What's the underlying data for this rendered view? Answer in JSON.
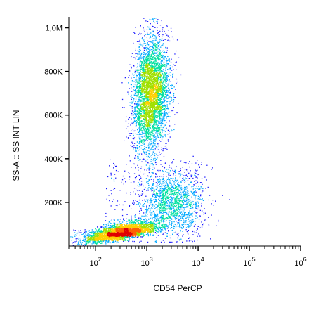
{
  "chart_data": {
    "type": "scatter",
    "style": "density-colored flow cytometry dot plot",
    "xlabel": "CD54 PerCP",
    "ylabel": "SS-A :: SS INT LIN",
    "x_scale": "log",
    "x_range": [
      30,
      1000000
    ],
    "y_scale": "linear",
    "y_range": [
      0,
      1050000
    ],
    "x_tick_labels": [
      {
        "value": 100,
        "mantissa": "10",
        "exp": "2"
      },
      {
        "value": 1000,
        "mantissa": "10",
        "exp": "3"
      },
      {
        "value": 10000,
        "mantissa": "10",
        "exp": "4"
      },
      {
        "value": 100000,
        "mantissa": "10",
        "exp": "5"
      },
      {
        "value": 1000000,
        "mantissa": "10",
        "exp": "6"
      }
    ],
    "y_tick_labels": [
      {
        "value": 200000,
        "label": "200K"
      },
      {
        "value": 400000,
        "label": "400K"
      },
      {
        "value": 600000,
        "label": "600K"
      },
      {
        "value": 800000,
        "label": "800K"
      },
      {
        "value": 1000000,
        "label": "1,0M"
      }
    ],
    "colormap": [
      "#1a1aff",
      "#00a8ff",
      "#00e0a0",
      "#a0e000",
      "#ffd000",
      "#ff6000",
      "#e00000"
    ],
    "populations": [
      {
        "name": "",
        "x_center": 1200,
        "y_center": 700000,
        "events": 4200
      },
      {
        "name": "",
        "x_center": 300,
        "y_center": 60000,
        "events": 3200
      },
      {
        "name": "",
        "x_center": 3000,
        "y_center": 200000,
        "events": 1400
      }
    ],
    "grid": false,
    "legend": "none"
  }
}
